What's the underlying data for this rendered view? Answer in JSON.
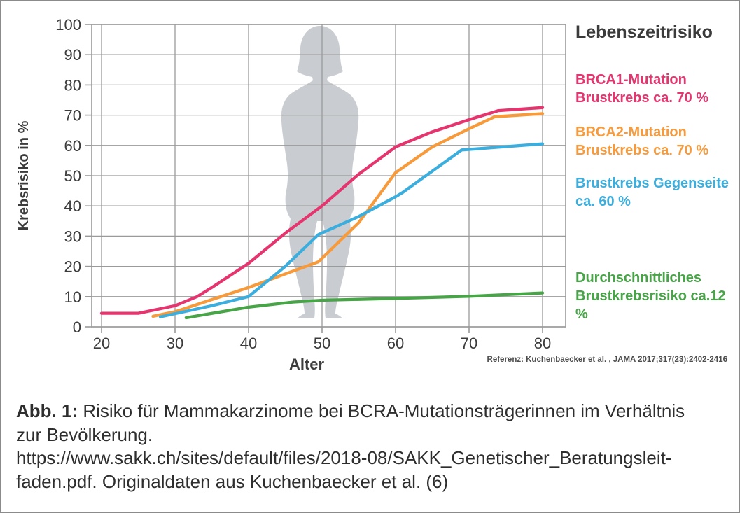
{
  "figure": {
    "legend_title": "Lebenszeitrisiko",
    "legend": [
      {
        "line1": "BRCA1-Mutation",
        "line2": "Brustkrebs ca. 70 %",
        "color": "#e5356f"
      },
      {
        "line1": "BRCA2-Mutation",
        "line2": "Brustkrebs ca. 70 %",
        "color": "#f69a3c"
      },
      {
        "line1": "Brustkrebs Gegenseite",
        "line2": "ca. 60 %",
        "color": "#3caede"
      },
      {
        "line1": "Durchschnittliches",
        "line2": "Brustkrebsrisiko ca.12 %",
        "color": "#47a447"
      }
    ],
    "reference": "Referenz: Kuchenbaecker et al. , JAMA 2017;317(23):2402-2416"
  },
  "chart_data": {
    "type": "line",
    "title": "",
    "xlabel": "Alter",
    "ylabel": "Krebsrisiko in %",
    "xlim": [
      20,
      80
    ],
    "ylim": [
      0,
      100
    ],
    "xticks": [
      20,
      30,
      40,
      50,
      60,
      70,
      80
    ],
    "yticks": [
      0,
      10,
      20,
      30,
      40,
      50,
      60,
      70,
      80,
      90,
      100
    ],
    "grid": true,
    "legend_position": "right",
    "series": [
      {
        "name": "BRCA1-Mutation Brustkrebs ca. 70 %",
        "color": "#e5356f",
        "points": [
          [
            20,
            4.5
          ],
          [
            25,
            4.5
          ],
          [
            30,
            7
          ],
          [
            33,
            10
          ],
          [
            35,
            13
          ],
          [
            40,
            21
          ],
          [
            45,
            31
          ],
          [
            50,
            40
          ],
          [
            55,
            50.5
          ],
          [
            60,
            59.5
          ],
          [
            65,
            64.5
          ],
          [
            70,
            68.5
          ],
          [
            74,
            71.5
          ],
          [
            80,
            72.5
          ]
        ]
      },
      {
        "name": "BRCA2-Mutation Brustkrebs ca. 70 %",
        "color": "#f69a3c",
        "points": [
          [
            27,
            3.5
          ],
          [
            30,
            5
          ],
          [
            35,
            9
          ],
          [
            40,
            13
          ],
          [
            45,
            17.5
          ],
          [
            49.5,
            21.5
          ],
          [
            55,
            34.5
          ],
          [
            60,
            51
          ],
          [
            65,
            59.5
          ],
          [
            70,
            65.5
          ],
          [
            73.5,
            69.5
          ],
          [
            80,
            70.5
          ]
        ]
      },
      {
        "name": "Brustkrebs Gegenseite ca. 60 %",
        "color": "#3caede",
        "points": [
          [
            28,
            3.3
          ],
          [
            35,
            7
          ],
          [
            40,
            10
          ],
          [
            45,
            20
          ],
          [
            49.5,
            30.5
          ],
          [
            55,
            36.5
          ],
          [
            60,
            43
          ],
          [
            61,
            44.5
          ],
          [
            65,
            51.5
          ],
          [
            69,
            58.5
          ],
          [
            80,
            60.5
          ]
        ]
      },
      {
        "name": "Durchschnittliches Brustkrebsrisiko ca.12 %",
        "color": "#47a447",
        "points": [
          [
            31.5,
            3
          ],
          [
            40,
            6.5
          ],
          [
            46,
            8.2
          ],
          [
            50,
            8.8
          ],
          [
            60,
            9.4
          ],
          [
            70,
            10.1
          ],
          [
            80,
            11.2
          ]
        ]
      }
    ]
  },
  "caption": {
    "label": "Abb. 1:",
    "line1_rest": " Risiko für Mammakarzinome bei BCRA-Mutationsträgerinnen im Verhältnis",
    "line2": "zur Bevölkerung.",
    "line3": "https://www.sakk.ch/sites/default/files/2018-08/SAKK_Genetischer_Beratungsleit-",
    "line4": "faden.pdf. Originaldaten aus Kuchenbaecker et al. (6)"
  },
  "colors": {
    "grid": "#9a9a9a",
    "axis_text": "#3c3c3c",
    "silhouette": "#c9ccd0"
  }
}
